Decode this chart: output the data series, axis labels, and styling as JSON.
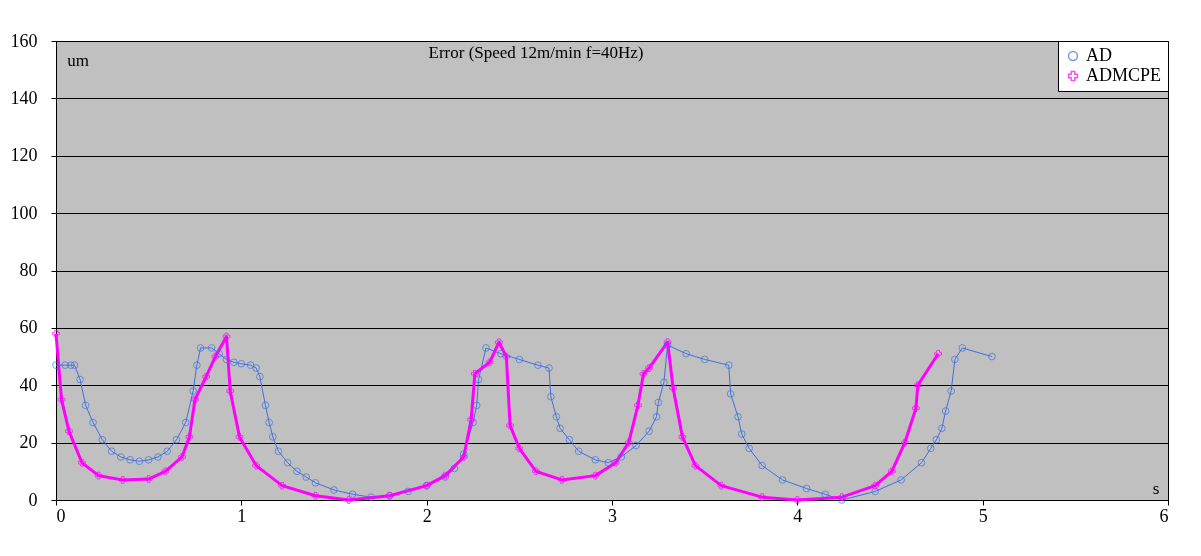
{
  "chart_data": {
    "type": "line",
    "title": "Error (Speed 12m/min f=40Hz)",
    "xlabel": "s",
    "ylabel": "um",
    "xlim": [
      0,
      6
    ],
    "xticks": [
      0,
      1,
      2,
      3,
      4,
      5,
      6
    ],
    "ylim": [
      0,
      160
    ],
    "yticks": [
      0,
      20,
      40,
      60,
      80,
      100,
      120,
      140,
      160
    ],
    "grid": "y",
    "legend": "top right",
    "series": [
      {
        "name": "AD",
        "color": "#3f6fe0",
        "marker": "circle",
        "x": [
          0,
          0.05,
          0.08,
          0.1,
          0.13,
          0.16,
          0.2,
          0.25,
          0.3,
          0.35,
          0.4,
          0.45,
          0.5,
          0.55,
          0.6,
          0.65,
          0.7,
          0.74,
          0.76,
          0.78,
          0.84,
          0.88,
          0.92,
          0.96,
          1.0,
          1.05,
          1.08,
          1.1,
          1.13,
          1.15,
          1.17,
          1.2,
          1.25,
          1.3,
          1.35,
          1.4,
          1.5,
          1.6,
          1.7,
          1.8,
          1.9,
          2.0,
          2.1,
          2.15,
          2.2,
          2.25,
          2.27,
          2.28,
          2.32,
          2.4,
          2.5,
          2.6,
          2.66,
          2.67,
          2.7,
          2.72,
          2.77,
          2.82,
          2.91,
          2.98,
          3.05,
          3.13,
          3.2,
          3.24,
          3.25,
          3.28,
          3.3,
          3.4,
          3.5,
          3.63,
          3.64,
          3.68,
          3.7,
          3.74,
          3.81,
          3.92,
          4.05,
          4.15,
          4.24,
          4.42,
          4.56,
          4.67,
          4.72,
          4.75,
          4.78,
          4.8,
          4.83,
          4.85,
          4.89,
          5.05
        ],
        "values": [
          47,
          47,
          47,
          47,
          42,
          33,
          27,
          21,
          17,
          15,
          14,
          13.5,
          14,
          15,
          17,
          21,
          27,
          38,
          47,
          53,
          53,
          51,
          49,
          48,
          47.5,
          47,
          46,
          43,
          33,
          27,
          22,
          17,
          13,
          10,
          8,
          6,
          3.5,
          2,
          1,
          1.5,
          3,
          5,
          8,
          11,
          16,
          27,
          33,
          42,
          53,
          51,
          49,
          47,
          46,
          36,
          29,
          25,
          21,
          17,
          14,
          13,
          15,
          19,
          24,
          29,
          34,
          41,
          54,
          51,
          49,
          47,
          37,
          29,
          23,
          18,
          12,
          7,
          4,
          2,
          0,
          3,
          7,
          13,
          18,
          21,
          25,
          31,
          38,
          49,
          53,
          50
        ]
      },
      {
        "name": "ADMCPE",
        "color": "#ff00ff",
        "marker": "cross",
        "x": [
          0,
          0.03,
          0.07,
          0.14,
          0.23,
          0.36,
          0.5,
          0.59,
          0.68,
          0.72,
          0.75,
          0.81,
          0.86,
          0.92,
          0.94,
          0.99,
          1.08,
          1.22,
          1.4,
          1.58,
          1.8,
          2.0,
          2.1,
          2.2,
          2.24,
          2.26,
          2.34,
          2.39,
          2.43,
          2.45,
          2.5,
          2.59,
          2.73,
          2.91,
          3.02,
          3.09,
          3.14,
          3.17,
          3.2,
          3.3,
          3.33,
          3.38,
          3.45,
          3.59,
          3.81,
          4.0,
          4.24,
          4.42,
          4.51,
          4.58,
          4.64,
          4.65,
          4.76
        ],
        "values": [
          58,
          35,
          24,
          13,
          8.5,
          7,
          7.3,
          10,
          15,
          22,
          35,
          43,
          50,
          57,
          38,
          22,
          12,
          5,
          1.5,
          0,
          1.5,
          5,
          8.5,
          15,
          28,
          44,
          48,
          55,
          50,
          26,
          18,
          10,
          7,
          8.5,
          13,
          20,
          33,
          44,
          46,
          55,
          39,
          22,
          12,
          5,
          1,
          0,
          1,
          5,
          10,
          20,
          32,
          40,
          51
        ]
      }
    ]
  }
}
